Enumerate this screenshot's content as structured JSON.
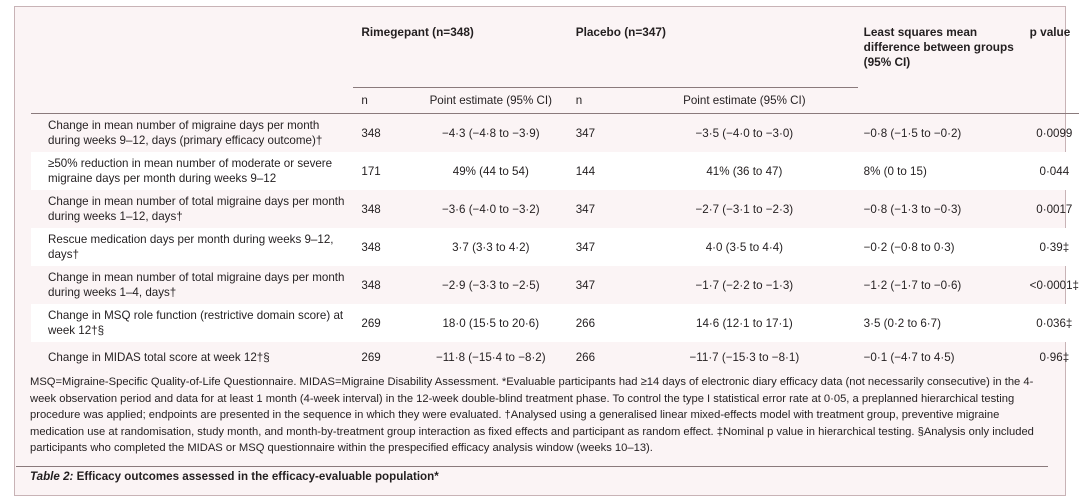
{
  "headers": {
    "rimegepant": "Rimegepant (n=348)",
    "placebo": "Placebo (n=347)",
    "lsmd": "Least squares mean difference between groups (95% CI)",
    "pvalue": "p value",
    "n": "n",
    "point": "Point estimate (95% CI)"
  },
  "rows": [
    {
      "label": "Change in mean number of migraine days per month during weeks 9–12, days (primary efficacy outcome)†",
      "rn": "348",
      "rpe": "−4·3 (−4·8 to −3·9)",
      "pn": "347",
      "ppe": "−3·5 (−4·0 to −3·0)",
      "diff": "−0·8 (−1·5 to −0·2)",
      "p": "0·0099"
    },
    {
      "label": "≥50% reduction in mean number of moderate or severe migraine days per month during weeks 9–12",
      "rn": "171",
      "rpe": "49% (44 to 54)",
      "pn": "144",
      "ppe": "41% (36 to 47)",
      "diff": "8% (0 to 15)",
      "p": "0·044"
    },
    {
      "label": "Change in mean number of total migraine days per month during weeks 1–12, days†",
      "rn": "348",
      "rpe": "−3·6 (−4·0 to −3·2)",
      "pn": "347",
      "ppe": "−2·7 (−3·1 to −2·3)",
      "diff": "−0·8 (−1·3 to −0·3)",
      "p": "0·0017"
    },
    {
      "label": "Rescue medication days per month during weeks 9–12, days†",
      "rn": "348",
      "rpe": "3·7 (3·3 to 4·2)",
      "pn": "347",
      "ppe": "4·0 (3·5 to 4·4)",
      "diff": "−0·2 (−0·8 to 0·3)",
      "p": "0·39‡"
    },
    {
      "label": "Change in mean number of total migraine days per month during weeks 1–4, days†",
      "rn": "348",
      "rpe": "−2·9 (−3·3 to −2·5)",
      "pn": "347",
      "ppe": "−1·7 (−2·2 to −1·3)",
      "diff": "−1·2 (−1·7 to −0·6)",
      "p": "<0·0001‡"
    },
    {
      "label": "Change in MSQ role function (restrictive domain score) at week 12†§",
      "rn": "269",
      "rpe": "18·0 (15·5 to 20·6)",
      "pn": "266",
      "ppe": "14·6 (12·1 to 17·1)",
      "diff": "3·5 (0·2 to 6·7)",
      "p": "0·036‡"
    },
    {
      "label": "Change in MIDAS total score at week 12†§",
      "rn": "269",
      "rpe": "−11·8 (−15·4 to −8·2)",
      "pn": "266",
      "ppe": "−11·7 (−15·3 to −8·1)",
      "diff": "−0·1 (−4·7 to 4·5)",
      "p": "0·96‡"
    }
  ],
  "footnote": "MSQ=Migraine-Specific Quality-of-Life Questionnaire. MIDAS=Migraine Disability Assessment. *Evaluable participants had ≥14 days of electronic diary efficacy data (not necessarily consecutive) in the 4-week observation period and data for at least 1 month (4-week interval) in the 12-week double-blind treatment phase. To control the type I statistical error rate at 0·05, a preplanned hierarchical testing procedure was applied; endpoints are presented in the sequence in which they were evaluated. †Analysed using a generalised linear mixed-effects model with treatment group, preventive migraine medication use at randomisation, study month, and month-by-treatment group interaction as fixed effects and participant as random effect. ‡Nominal p value in hierarchical testing. §Analysis only included participants who completed the MIDAS or MSQ questionnaire within the prespecified efficacy analysis window (weeks 10–13).",
  "caption": {
    "label": "Table 2:",
    "text": " Efficacy outcomes assessed in the efficacy-evaluable population*"
  }
}
